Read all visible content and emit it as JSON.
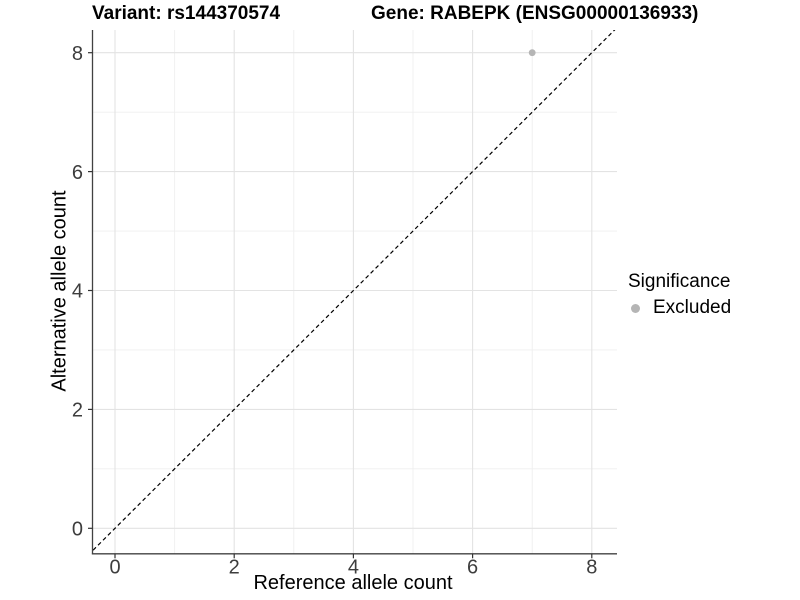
{
  "chart_data": {
    "type": "scatter",
    "title_left": "Variant: rs144370574",
    "title_right": "Gene: RABEPK (ENSG00000136933)",
    "xlabel": "Reference allele count",
    "ylabel": "Alternative allele count",
    "xlim": [
      -0.4,
      8.4
    ],
    "ylim": [
      -0.4,
      8.4
    ],
    "x_ticks": [
      0,
      2,
      4,
      6,
      8
    ],
    "y_ticks": [
      0,
      2,
      4,
      6,
      8
    ],
    "x_minor_ticks": [
      1,
      3,
      5,
      7
    ],
    "y_minor_ticks": [
      1,
      3,
      5,
      7
    ],
    "grid": "major+minor",
    "reference_line": {
      "kind": "identity",
      "slope": 1,
      "intercept": 0,
      "style": "dashed",
      "color": "#000000"
    },
    "series": [
      {
        "name": "Excluded",
        "color": "#b5b5b5",
        "points": [
          {
            "x": 7,
            "y": 8
          }
        ]
      }
    ],
    "legend": {
      "title": "Significance",
      "position": "right",
      "items": [
        {
          "label": "Excluded",
          "color": "#b5b5b5",
          "marker": "circle"
        }
      ]
    },
    "style": {
      "major_grid_color": "#e3e3e3",
      "minor_grid_color": "#efefef",
      "axis_line_color": "#424242",
      "tick_color": "#333333",
      "tick_label_color": "#3d3d3d",
      "background": "#ffffff"
    }
  }
}
